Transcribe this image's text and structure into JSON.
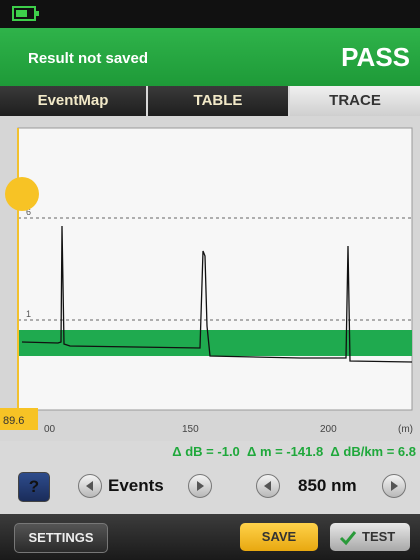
{
  "header": {
    "status": "Result not saved",
    "result": "PASS"
  },
  "tabs": [
    "EventMap",
    "TABLE",
    "TRACE"
  ],
  "trace": {
    "x_labels": [
      "00",
      "150",
      "200",
      "(m)"
    ],
    "y_labels": [
      "6",
      "1"
    ],
    "cursor": "89.6"
  },
  "measurement": "Δ dB = -1.0  Δ m = -141.8  Δ dB/km = 6.8",
  "controls": {
    "help": "?",
    "events": "Events",
    "wavelength": "850 nm"
  },
  "buttons": {
    "settings": "SETTINGS",
    "save": "SAVE",
    "test": "TEST"
  }
}
